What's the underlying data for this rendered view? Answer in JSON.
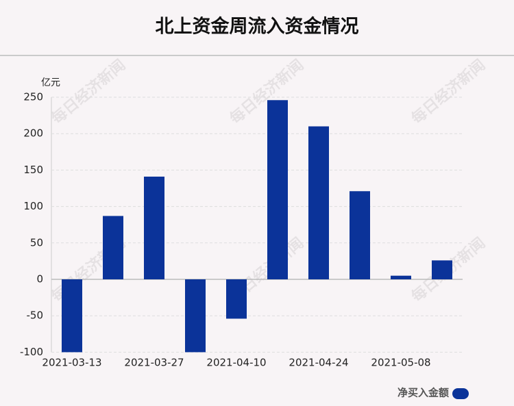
{
  "chart_data": {
    "type": "bar",
    "title": "北上资金周流入资金情况",
    "y_unit": "亿元",
    "categories": [
      "2021-03-13",
      null,
      "2021-03-27",
      null,
      "2021-04-10",
      null,
      "2021-04-24",
      null,
      "2021-05-08",
      null
    ],
    "series": [
      {
        "name": "净买入金额",
        "color": "#0b3399",
        "values": [
          -100,
          87,
          141,
          -100,
          -54,
          246,
          210,
          121,
          5,
          26
        ]
      }
    ],
    "ylim": [
      -100,
      250
    ],
    "yticks": [
      -100,
      -50,
      0,
      50,
      100,
      150,
      200,
      250
    ],
    "grid": true,
    "watermark": "每日经济新闻"
  }
}
